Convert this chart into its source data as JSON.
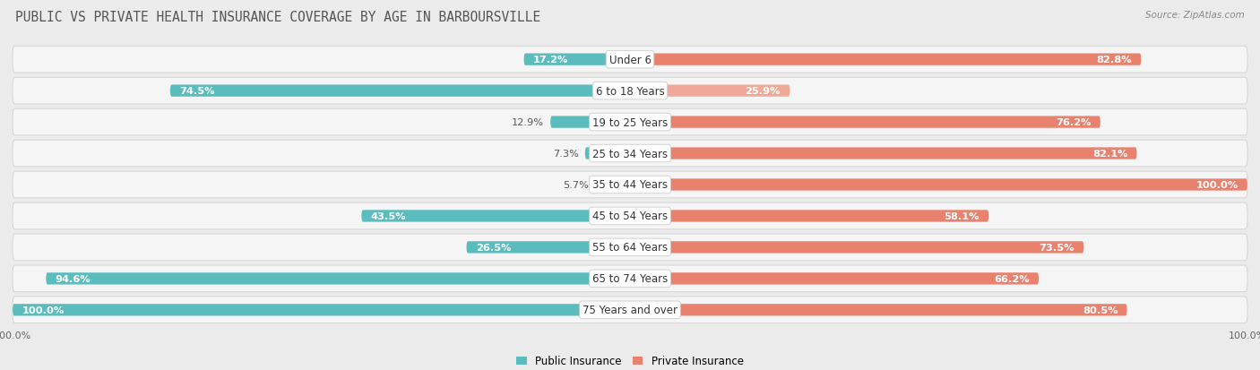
{
  "title": "PUBLIC VS PRIVATE HEALTH INSURANCE COVERAGE BY AGE IN BARBOURSVILLE",
  "source": "Source: ZipAtlas.com",
  "categories": [
    "Under 6",
    "6 to 18 Years",
    "19 to 25 Years",
    "25 to 34 Years",
    "35 to 44 Years",
    "45 to 54 Years",
    "55 to 64 Years",
    "65 to 74 Years",
    "75 Years and over"
  ],
  "public_values": [
    17.2,
    74.5,
    12.9,
    7.3,
    5.7,
    43.5,
    26.5,
    94.6,
    100.0
  ],
  "private_values": [
    82.8,
    25.9,
    76.2,
    82.1,
    100.0,
    58.1,
    73.5,
    66.2,
    80.5
  ],
  "public_color": "#5bbcbd",
  "private_color": "#e8826e",
  "private_color_light": "#f0a898",
  "bg_color": "#ebebeb",
  "row_bg_color": "#f5f5f5",
  "row_border_color": "#d0d0d0",
  "legend_labels": [
    "Public Insurance",
    "Private Insurance"
  ],
  "title_fontsize": 10.5,
  "label_fontsize": 8.5,
  "value_fontsize": 8.2,
  "tick_fontsize": 8,
  "source_fontsize": 7.5
}
